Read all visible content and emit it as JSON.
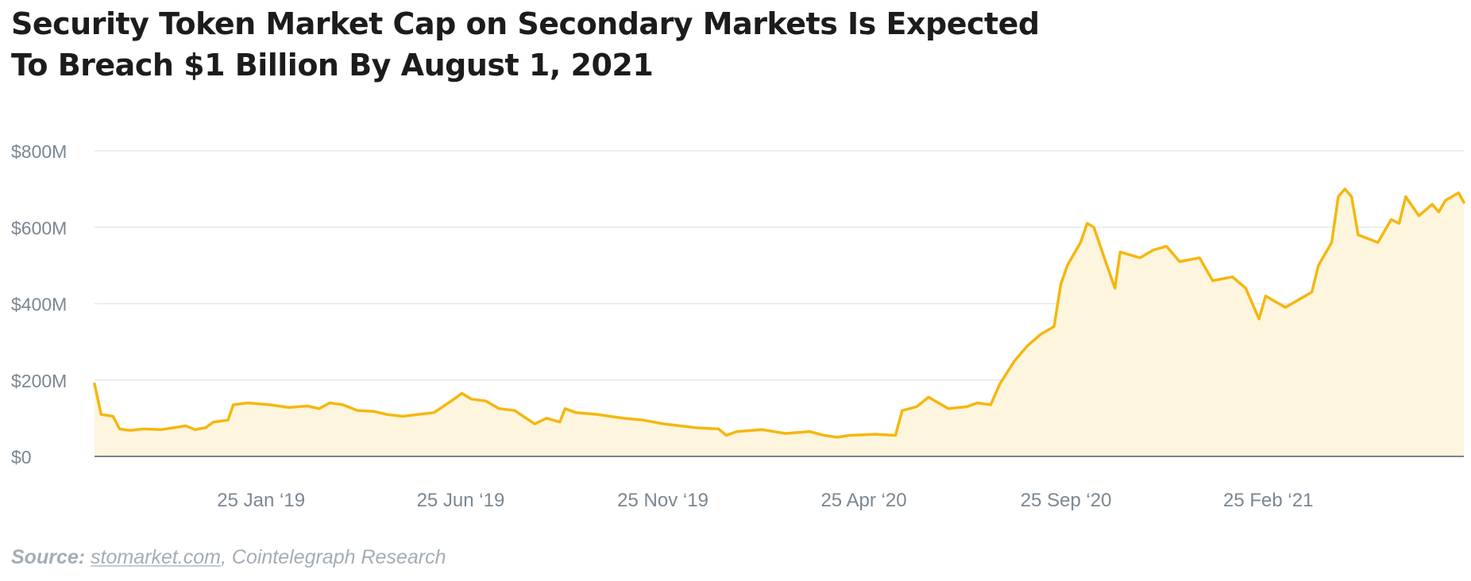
{
  "title_line1": "Security Token Market Cap on Secondary Markets Is Expected",
  "title_line2": "To Breach $1 Billion By August 1, 2021",
  "source": {
    "label": "Source:",
    "link_text": "stomarket.com",
    "separator": ",",
    "rest": "Cointelegraph Research"
  },
  "colors": {
    "line": "#f5b70f",
    "area": "#fdf5dd",
    "grid": "#e6e9ec",
    "axis": "#4f5b66",
    "tick_text": "#7b8792"
  },
  "chart_data": {
    "type": "area",
    "title": "Security Token Market Cap on Secondary Markets Is Expected To Breach $1 Billion By August 1, 2021",
    "xlabel": "",
    "ylabel": "",
    "ylim": [
      0,
      800
    ],
    "y_unit": "$M",
    "grid": true,
    "legend": "none",
    "yticks": [
      {
        "value": 0,
        "label": "$0"
      },
      {
        "value": 200,
        "label": "$200M"
      },
      {
        "value": 400,
        "label": "$400M"
      },
      {
        "value": 600,
        "label": "$600M"
      },
      {
        "value": 800,
        "label": "$800M"
      }
    ],
    "xlim": [
      "2018-09-21",
      "2021-07-23"
    ],
    "xticks": [
      {
        "date": "2019-01-25",
        "label": "25 Jan ‘19"
      },
      {
        "date": "2019-06-25",
        "label": "25 Jun ‘19"
      },
      {
        "date": "2019-11-25",
        "label": "25 Nov ‘19"
      },
      {
        "date": "2020-04-25",
        "label": "25 Apr ‘20"
      },
      {
        "date": "2020-09-25",
        "label": "25 Sep ‘20"
      },
      {
        "date": "2021-02-25",
        "label": "25 Feb ‘21"
      }
    ],
    "series": [
      {
        "values": [
          [
            "2018-09-21",
            190
          ],
          [
            "2018-09-26",
            110
          ],
          [
            "2018-10-05",
            105
          ],
          [
            "2018-10-10",
            72
          ],
          [
            "2018-10-18",
            68
          ],
          [
            "2018-10-28",
            72
          ],
          [
            "2018-11-10",
            70
          ],
          [
            "2018-11-20",
            75
          ],
          [
            "2018-11-29",
            80
          ],
          [
            "2018-12-06",
            70
          ],
          [
            "2018-12-14",
            75
          ],
          [
            "2018-12-20",
            90
          ],
          [
            "2018-12-31",
            95
          ],
          [
            "2019-01-04",
            135
          ],
          [
            "2019-01-15",
            140
          ],
          [
            "2019-02-01",
            135
          ],
          [
            "2019-02-15",
            128
          ],
          [
            "2019-03-01",
            132
          ],
          [
            "2019-03-10",
            125
          ],
          [
            "2019-03-18",
            140
          ],
          [
            "2019-03-28",
            135
          ],
          [
            "2019-04-08",
            120
          ],
          [
            "2019-04-20",
            118
          ],
          [
            "2019-04-30",
            110
          ],
          [
            "2019-05-12",
            105
          ],
          [
            "2019-05-24",
            110
          ],
          [
            "2019-06-05",
            115
          ],
          [
            "2019-06-20",
            150
          ],
          [
            "2019-06-26",
            165
          ],
          [
            "2019-07-03",
            150
          ],
          [
            "2019-07-14",
            145
          ],
          [
            "2019-07-24",
            125
          ],
          [
            "2019-08-05",
            120
          ],
          [
            "2019-08-20",
            85
          ],
          [
            "2019-08-29",
            100
          ],
          [
            "2019-09-08",
            90
          ],
          [
            "2019-09-12",
            125
          ],
          [
            "2019-09-20",
            115
          ],
          [
            "2019-10-06",
            110
          ],
          [
            "2019-10-26",
            100
          ],
          [
            "2019-11-10",
            95
          ],
          [
            "2019-11-26",
            85
          ],
          [
            "2019-12-08",
            80
          ],
          [
            "2019-12-20",
            75
          ],
          [
            "2020-01-06",
            72
          ],
          [
            "2020-01-12",
            55
          ],
          [
            "2020-01-20",
            65
          ],
          [
            "2020-02-08",
            70
          ],
          [
            "2020-02-26",
            60
          ],
          [
            "2020-03-15",
            65
          ],
          [
            "2020-03-26",
            55
          ],
          [
            "2020-04-05",
            50
          ],
          [
            "2020-04-14",
            55
          ],
          [
            "2020-05-04",
            58
          ],
          [
            "2020-05-19",
            55
          ],
          [
            "2020-05-24",
            120
          ],
          [
            "2020-06-04",
            130
          ],
          [
            "2020-06-13",
            155
          ],
          [
            "2020-06-28",
            125
          ],
          [
            "2020-07-12",
            130
          ],
          [
            "2020-07-20",
            140
          ],
          [
            "2020-07-30",
            135
          ],
          [
            "2020-08-06",
            190
          ],
          [
            "2020-08-17",
            250
          ],
          [
            "2020-08-27",
            290
          ],
          [
            "2020-09-06",
            320
          ],
          [
            "2020-09-16",
            340
          ],
          [
            "2020-09-21",
            450
          ],
          [
            "2020-09-26",
            500
          ],
          [
            "2020-10-06",
            560
          ],
          [
            "2020-10-11",
            610
          ],
          [
            "2020-10-16",
            600
          ],
          [
            "2020-10-26",
            500
          ],
          [
            "2020-11-01",
            440
          ],
          [
            "2020-11-05",
            535
          ],
          [
            "2020-11-20",
            520
          ],
          [
            "2020-11-30",
            540
          ],
          [
            "2020-12-10",
            550
          ],
          [
            "2020-12-20",
            510
          ],
          [
            "2021-01-04",
            520
          ],
          [
            "2021-01-14",
            460
          ],
          [
            "2021-01-29",
            470
          ],
          [
            "2021-02-08",
            440
          ],
          [
            "2021-02-13",
            400
          ],
          [
            "2021-02-18",
            360
          ],
          [
            "2021-02-23",
            420
          ],
          [
            "2021-03-05",
            400
          ],
          [
            "2021-03-10",
            390
          ],
          [
            "2021-03-20",
            410
          ],
          [
            "2021-03-30",
            430
          ],
          [
            "2021-04-04",
            500
          ],
          [
            "2021-04-14",
            560
          ],
          [
            "2021-04-19",
            680
          ],
          [
            "2021-04-24",
            700
          ],
          [
            "2021-04-29",
            680
          ],
          [
            "2021-05-04",
            580
          ],
          [
            "2021-05-19",
            560
          ],
          [
            "2021-05-29",
            620
          ],
          [
            "2021-06-04",
            610
          ],
          [
            "2021-06-09",
            680
          ],
          [
            "2021-06-19",
            630
          ],
          [
            "2021-06-29",
            660
          ],
          [
            "2021-07-04",
            640
          ],
          [
            "2021-07-09",
            670
          ],
          [
            "2021-07-19",
            690
          ],
          [
            "2021-07-23",
            665
          ]
        ]
      }
    ]
  }
}
